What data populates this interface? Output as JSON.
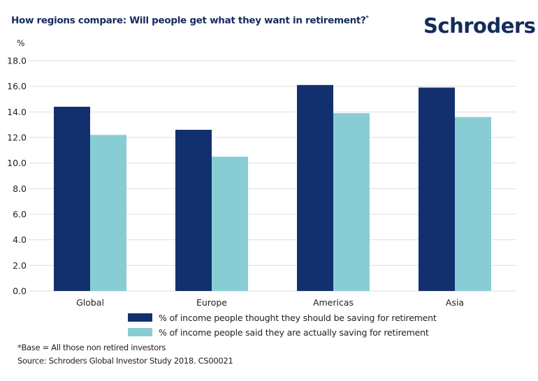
{
  "header": {
    "title": "How regions compare: Will people get what they want in retirement?",
    "title_marker": "*",
    "brand": "Schroders"
  },
  "colors": {
    "series_1": "#13306e",
    "series_2": "#89cdd4",
    "text_dark": "#142b5c",
    "gridline": "#dddddd"
  },
  "chart_data": {
    "type": "bar",
    "title": "How regions compare: Will people get what they want in retirement?*",
    "xlabel": "",
    "ylabel": "%",
    "ylim": [
      0,
      18
    ],
    "yticks": [
      0,
      2,
      4,
      6,
      8,
      10,
      12,
      14,
      16,
      18
    ],
    "ytick_labels": [
      "0.0",
      "2.0",
      "4.0",
      "6.0",
      "8.0",
      "10.0",
      "12.0",
      "14.0",
      "16.0",
      "18.0"
    ],
    "grid": true,
    "legend_position": "bottom",
    "categories": [
      "Global",
      "Europe",
      "Americas",
      "Asia"
    ],
    "series": [
      {
        "name": "% of income people thought they should be saving for retirement",
        "color": "#13306e",
        "values": [
          14.4,
          12.6,
          16.1,
          15.9
        ]
      },
      {
        "name": "% of income people said they are actually saving for retirement",
        "color": "#89cdd4",
        "values": [
          12.2,
          10.5,
          13.9,
          13.6
        ]
      }
    ]
  },
  "footnotes": {
    "base": "*Base = All those non retired investors",
    "source": "Source: Schroders Global Investor Study 2018. CS00021"
  }
}
